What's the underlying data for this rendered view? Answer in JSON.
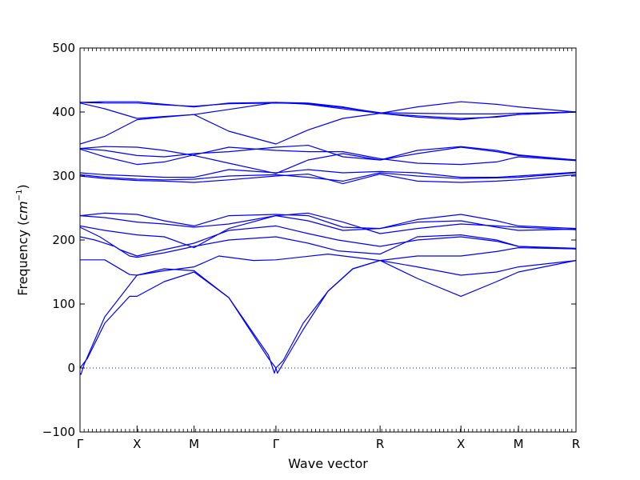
{
  "chart_data": {
    "type": "line",
    "title": "",
    "xlabel": "Wave vector",
    "ylabel_prefix": "Frequency (",
    "ylabel_unit": "cm",
    "ylabel_exp": "−1",
    "ylabel_suffix": ")",
    "ylim": [
      -100,
      500
    ],
    "yticks": [
      -100,
      0,
      100,
      200,
      300,
      400,
      500
    ],
    "xlim": [
      0,
      1
    ],
    "xticks": [
      {
        "label": "Γ",
        "x": 0.0
      },
      {
        "label": "X",
        "x": 0.115
      },
      {
        "label": "M",
        "x": 0.23
      },
      {
        "label": "Γ",
        "x": 0.395
      },
      {
        "label": "R",
        "x": 0.605
      },
      {
        "label": "X",
        "x": 0.768
      },
      {
        "label": "M",
        "x": 0.884
      },
      {
        "label": "R",
        "x": 1.0
      }
    ],
    "zero_line": true,
    "line_color": "#0000ff",
    "series": [
      {
        "x": [
          0,
          0.002,
          0.008,
          0.05,
          0.115,
          0.17,
          0.23,
          0.3,
          0.38,
          0.392,
          0.395
        ],
        "y": [
          -8,
          -10,
          5,
          80,
          145,
          155,
          152,
          110,
          20,
          -8,
          0
        ]
      },
      {
        "x": [
          0,
          0.01,
          0.015,
          0.05,
          0.1,
          0.115,
          0.17,
          0.23,
          0.3,
          0.38,
          0.395
        ],
        "y": [
          0,
          10,
          15,
          70,
          112,
          112,
          135,
          150,
          110,
          15,
          0
        ]
      },
      {
        "x": [
          0.395,
          0.398,
          0.408,
          0.45,
          0.5,
          0.55,
          0.605,
          0.68,
          0.768,
          0.84,
          0.884,
          1.0
        ],
        "y": [
          0,
          -8,
          5,
          60,
          120,
          155,
          168,
          140,
          112,
          135,
          150,
          168
        ]
      },
      {
        "x": [
          0.395,
          0.41,
          0.45,
          0.5,
          0.55,
          0.605,
          0.68,
          0.768,
          0.84,
          0.884,
          1.0
        ],
        "y": [
          0,
          12,
          70,
          120,
          155,
          168,
          158,
          145,
          150,
          158,
          168
        ]
      },
      {
        "x": [
          0,
          0.05,
          0.1,
          0.115,
          0.17,
          0.23,
          0.28,
          0.35,
          0.395,
          0.5,
          0.605,
          0.68,
          0.768,
          0.84,
          0.884,
          1.0
        ],
        "y": [
          169,
          169,
          146,
          145,
          152,
          158,
          175,
          168,
          169,
          178,
          168,
          175,
          175,
          182,
          188,
          186
        ]
      },
      {
        "x": [
          0,
          0.03,
          0.07,
          0.1,
          0.115,
          0.17,
          0.23,
          0.3,
          0.395,
          0.46,
          0.52,
          0.605,
          0.68,
          0.768,
          0.84,
          0.884,
          1.0
        ],
        "y": [
          205,
          200,
          190,
          175,
          173,
          180,
          190,
          200,
          205,
          195,
          183,
          178,
          205,
          208,
          200,
          190,
          187
        ]
      },
      {
        "x": [
          0,
          0.04,
          0.08,
          0.115,
          0.17,
          0.23,
          0.3,
          0.395,
          0.46,
          0.52,
          0.605,
          0.68,
          0.768,
          0.84,
          0.884,
          1.0
        ],
        "y": [
          220,
          205,
          185,
          175,
          185,
          195,
          215,
          222,
          210,
          200,
          190,
          200,
          205,
          198,
          190,
          186
        ]
      },
      {
        "x": [
          0,
          0.05,
          0.115,
          0.17,
          0.23,
          0.3,
          0.395,
          0.46,
          0.53,
          0.605,
          0.68,
          0.768,
          0.84,
          0.884,
          1.0
        ],
        "y": [
          222,
          215,
          208,
          205,
          188,
          218,
          238,
          230,
          215,
          218,
          228,
          230,
          220,
          215,
          217
        ]
      },
      {
        "x": [
          0,
          0.05,
          0.115,
          0.17,
          0.23,
          0.3,
          0.395,
          0.46,
          0.53,
          0.605,
          0.68,
          0.768,
          0.84,
          0.884,
          1.0
        ],
        "y": [
          238,
          242,
          240,
          230,
          222,
          238,
          240,
          238,
          220,
          218,
          232,
          240,
          230,
          222,
          218
        ]
      },
      {
        "x": [
          0,
          0.05,
          0.115,
          0.17,
          0.23,
          0.3,
          0.395,
          0.46,
          0.53,
          0.605,
          0.68,
          0.768,
          0.84,
          0.884,
          1.0
        ],
        "y": [
          238,
          235,
          228,
          225,
          220,
          225,
          238,
          242,
          228,
          210,
          218,
          225,
          222,
          220,
          216
        ]
      },
      {
        "x": [
          0,
          0.05,
          0.115,
          0.17,
          0.23,
          0.3,
          0.395,
          0.46,
          0.53,
          0.605,
          0.68,
          0.768,
          0.84,
          0.884,
          1.0
        ],
        "y": [
          302,
          298,
          295,
          294,
          295,
          300,
          302,
          298,
          292,
          305,
          300,
          296,
          297,
          298,
          305
        ]
      },
      {
        "x": [
          0,
          0.05,
          0.115,
          0.17,
          0.23,
          0.3,
          0.395,
          0.46,
          0.53,
          0.605,
          0.68,
          0.768,
          0.84,
          0.884,
          1.0
        ],
        "y": [
          300,
          296,
          293,
          292,
          290,
          294,
          300,
          303,
          288,
          303,
          292,
          290,
          292,
          294,
          302
        ]
      },
      {
        "x": [
          0,
          0.05,
          0.115,
          0.17,
          0.23,
          0.3,
          0.395,
          0.46,
          0.53,
          0.605,
          0.68,
          0.768,
          0.84,
          0.884,
          1.0
        ],
        "y": [
          305,
          302,
          300,
          298,
          298,
          310,
          305,
          310,
          305,
          307,
          305,
          298,
          298,
          300,
          306
        ]
      },
      {
        "x": [
          0,
          0.05,
          0.115,
          0.17,
          0.23,
          0.3,
          0.395,
          0.46,
          0.53,
          0.605,
          0.68,
          0.768,
          0.84,
          0.884,
          1.0
        ],
        "y": [
          343,
          346,
          345,
          340,
          332,
          320,
          304,
          325,
          335,
          325,
          340,
          346,
          340,
          333,
          325
        ]
      },
      {
        "x": [
          0,
          0.05,
          0.115,
          0.17,
          0.23,
          0.3,
          0.395,
          0.46,
          0.53,
          0.605,
          0.68,
          0.768,
          0.84,
          0.884,
          1.0
        ],
        "y": [
          342,
          330,
          318,
          322,
          333,
          345,
          340,
          338,
          338,
          327,
          320,
          318,
          322,
          330,
          324
        ]
      },
      {
        "x": [
          0,
          0.05,
          0.115,
          0.17,
          0.23,
          0.3,
          0.395,
          0.46,
          0.53,
          0.605,
          0.68,
          0.768,
          0.84,
          0.884,
          1.0
        ],
        "y": [
          343,
          340,
          332,
          330,
          335,
          338,
          345,
          348,
          330,
          325,
          335,
          345,
          338,
          332,
          325
        ]
      },
      {
        "x": [
          0,
          0.05,
          0.115,
          0.17,
          0.23,
          0.3,
          0.395,
          0.46,
          0.53,
          0.605,
          0.68,
          0.768,
          0.84,
          0.884,
          1.0
        ],
        "y": [
          350,
          362,
          388,
          392,
          396,
          370,
          350,
          372,
          390,
          398,
          392,
          388,
          393,
          396,
          400
        ]
      },
      {
        "x": [
          0,
          0.05,
          0.115,
          0.17,
          0.23,
          0.3,
          0.395,
          0.46,
          0.53,
          0.605,
          0.68,
          0.768,
          0.84,
          0.884,
          1.0
        ],
        "y": [
          414,
          405,
          390,
          393,
          396,
          404,
          415,
          412,
          405,
          398,
          408,
          416,
          412,
          408,
          400
        ]
      },
      {
        "x": [
          0,
          0.05,
          0.115,
          0.17,
          0.23,
          0.3,
          0.395,
          0.46,
          0.53,
          0.605,
          0.68,
          0.768,
          0.84,
          0.884,
          1.0
        ],
        "y": [
          415,
          416,
          416,
          412,
          408,
          414,
          415,
          414,
          408,
          398,
          394,
          390,
          392,
          396,
          400
        ]
      },
      {
        "x": [
          0,
          0.05,
          0.115,
          0.17,
          0.23,
          0.3,
          0.395,
          0.46,
          0.53,
          0.605,
          0.68,
          0.768,
          0.84,
          0.884,
          1.0
        ],
        "y": [
          415,
          414,
          414,
          411,
          409,
          413,
          414,
          413,
          407,
          399,
          398,
          397,
          397,
          398,
          400
        ]
      }
    ]
  }
}
